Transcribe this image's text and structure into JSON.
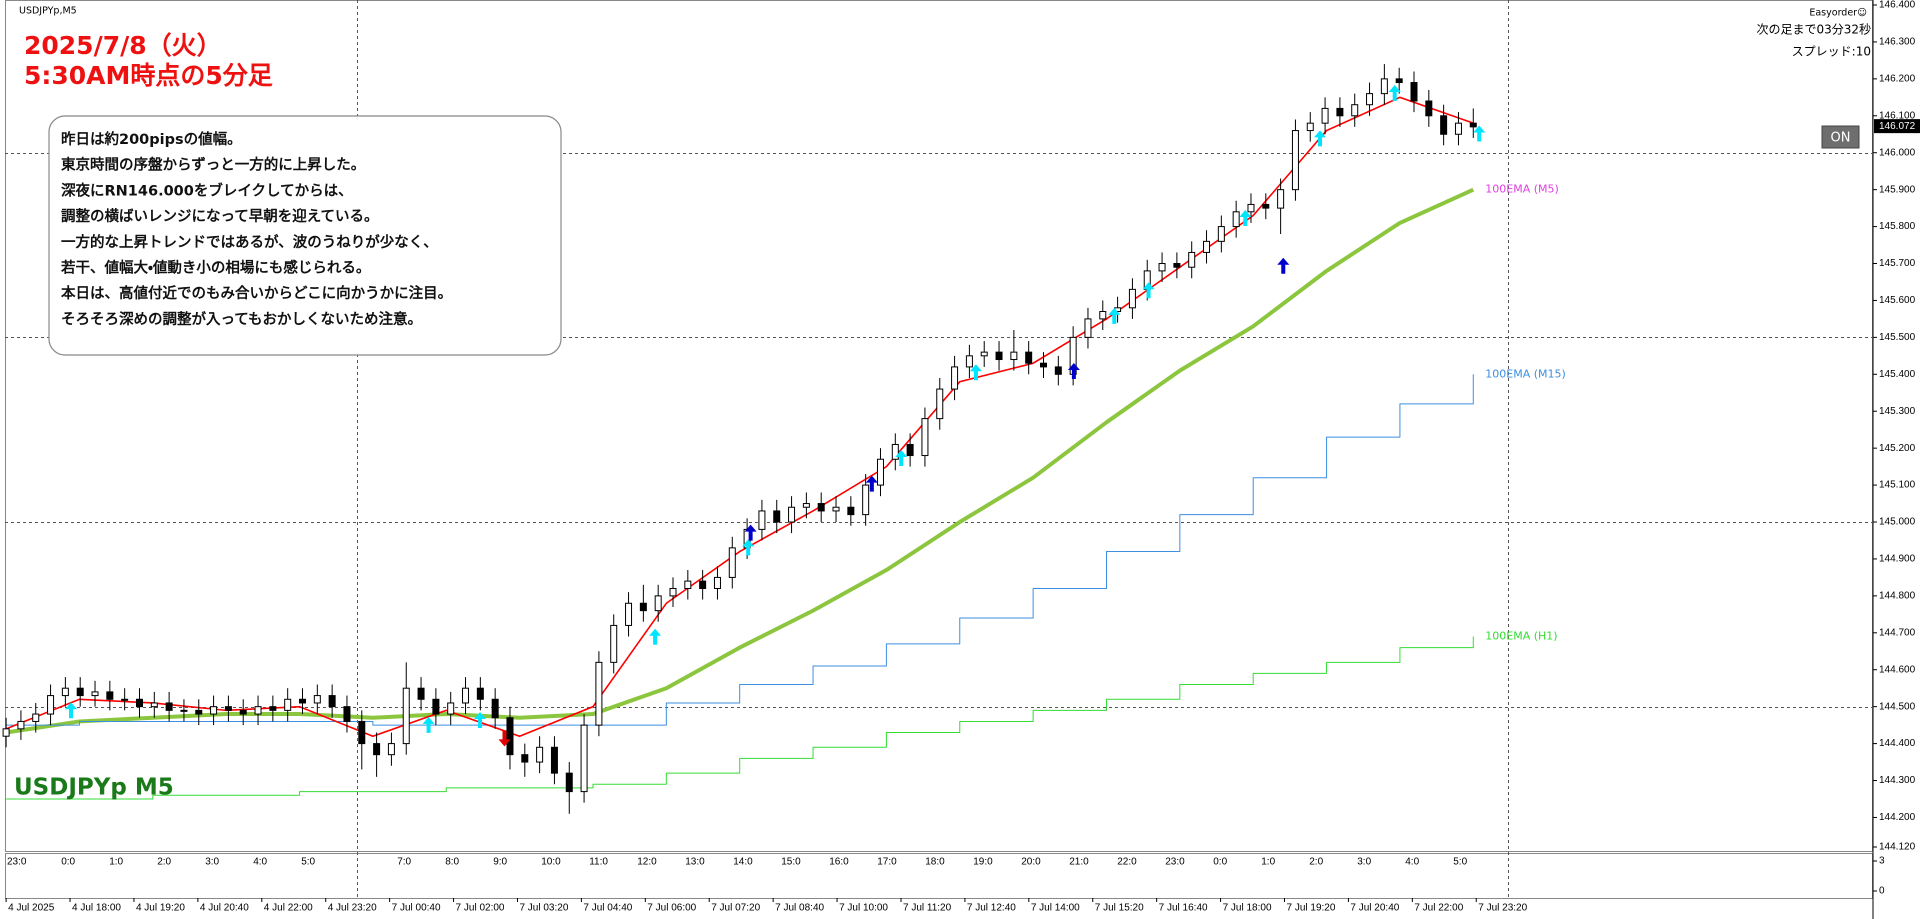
{
  "chart_data": {
    "type": "candlestick",
    "symbol_label": "USDJPYp,M5",
    "title": [
      "2025/7/8（火）",
      "5:30AM時点の5分足"
    ],
    "annotation": [
      "昨日は約200pipsの値幅。",
      "東京時間の序盤からずっと一方的に上昇した。",
      "深夜にRN146.000をブレイクしてからは、",
      "調整の横ばいレンジになって早朝を迎えている。",
      "一方的な上昇トレンドではあるが、波のうねりが少なく、",
      "若干、値幅大・値動き小の相場にも感じられる。",
      "本日は、高値付近でのもみ合いからどこに向かうかに注目。",
      "そろそろ深めの調整が入ってもおかしくないため注意。"
    ],
    "watermark": "USDJPYp M5",
    "panel": {
      "name": "Easyorder☺",
      "countdown": "次の足まで03分32秒",
      "spread": "スプレッド:10",
      "button": "ON"
    },
    "ylim": [
      144.12,
      146.4
    ],
    "yticks": [
      {
        "value": 144.12,
        "label": "144.120"
      },
      {
        "value": 144.2,
        "label": "144.200"
      },
      {
        "value": 144.3,
        "label": "144.300"
      },
      {
        "value": 144.4,
        "label": "144.400"
      },
      {
        "value": 144.5,
        "label": "144.500"
      },
      {
        "value": 144.6,
        "label": "144.600"
      },
      {
        "value": 144.7,
        "label": "144.700"
      },
      {
        "value": 144.8,
        "label": "144.800"
      },
      {
        "value": 144.9,
        "label": "144.900"
      },
      {
        "value": 145,
        "label": "145.000"
      },
      {
        "value": 145.1,
        "label": "145.100"
      },
      {
        "value": 145.2,
        "label": "145.200"
      },
      {
        "value": 145.3,
        "label": "145.300"
      },
      {
        "value": 145.4,
        "label": "145.400"
      },
      {
        "value": 145.5,
        "label": "145.500"
      },
      {
        "value": 145.6,
        "label": "145.600"
      },
      {
        "value": 145.7,
        "label": "145.700"
      },
      {
        "value": 145.8,
        "label": "145.800"
      },
      {
        "value": 145.9,
        "label": "145.900"
      },
      {
        "value": 146,
        "label": "146.000"
      },
      {
        "value": 146.1,
        "label": "146.100"
      },
      {
        "value": 146.2,
        "label": "146.200"
      },
      {
        "value": 146.3,
        "label": "146.300"
      },
      {
        "value": 146.4,
        "label": "146.400"
      }
    ],
    "grid_levels": [
      144.5,
      145,
      145.5,
      146
    ],
    "current_price": {
      "value": 146.072,
      "label": "146.072"
    },
    "sub_ylim": [
      0,
      3
    ],
    "sub_yticks": [
      3,
      0
    ],
    "hour_labels": [
      "23:0",
      "0:0",
      "1:0",
      "2:0",
      "3:0",
      "4:0",
      "5:0",
      null,
      "7:0",
      "8:0",
      "9:0",
      "10:0",
      "11:0",
      "12:0",
      "13:0",
      "14:0",
      "15:0",
      "16:0",
      "17:0",
      "18:0",
      "19:0",
      "20:0",
      "21:0",
      "22:0",
      "23:0",
      "0:0",
      "1:0",
      "2:0",
      "3:0",
      "4:0",
      "5:0"
    ],
    "x_labels": [
      "4 Jul 2025",
      "4 Jul 18:00",
      "4 Jul 19:20",
      "4 Jul 20:40",
      "4 Jul 22:00",
      "4 Jul 23:20",
      "7 Jul 00:40",
      "7 Jul 02:00",
      "7 Jul 03:20",
      "7 Jul 04:40",
      "7 Jul 06:00",
      "7 Jul 07:20",
      "7 Jul 08:40",
      "7 Jul 10:00",
      "7 Jul 11:20",
      "7 Jul 12:40",
      "7 Jul 14:00",
      "7 Jul 15:20",
      "7 Jul 16:40",
      "7 Jul 18:00",
      "7 Jul 19:20",
      "7 Jul 20:40",
      "7 Jul 22:00",
      "7 Jul 23:20"
    ],
    "open": [
      144.42,
      144.44,
      144.46,
      144.48,
      144.53,
      144.55,
      144.53,
      144.54,
      144.52,
      144.52,
      144.5,
      144.51,
      144.49,
      144.49,
      144.48,
      144.5,
      144.49,
      144.48,
      144.5,
      144.49,
      144.52,
      144.51,
      144.53,
      144.5,
      144.46,
      144.4,
      144.37,
      144.4,
      144.55,
      144.52,
      144.48,
      144.51,
      144.55,
      144.52,
      144.47,
      144.37,
      144.35,
      144.39,
      144.32,
      144.27,
      144.45,
      144.62,
      144.72,
      144.78,
      144.76,
      144.8,
      144.82,
      144.84,
      144.82,
      144.85,
      144.93,
      144.98,
      145.03,
      145.0,
      145.04,
      145.05,
      145.03,
      145.04,
      145.02,
      145.1,
      145.17,
      145.21,
      145.18,
      145.28,
      145.36,
      145.42,
      145.45,
      145.46,
      145.44,
      145.46,
      145.43,
      145.42,
      145.4,
      145.5,
      145.55,
      145.57,
      145.58,
      145.63,
      145.68,
      145.7,
      145.69,
      145.73,
      145.76,
      145.8,
      145.84,
      145.86,
      145.85,
      145.9,
      146.06,
      146.08,
      146.12,
      146.1,
      146.13,
      146.16,
      146.2,
      146.19,
      146.14,
      146.1,
      146.05,
      146.08
    ],
    "high": [
      144.47,
      144.49,
      144.51,
      144.56,
      144.58,
      144.58,
      144.57,
      144.57,
      144.55,
      144.55,
      144.54,
      144.54,
      144.52,
      144.52,
      144.53,
      144.53,
      144.52,
      144.53,
      144.53,
      144.55,
      144.55,
      144.56,
      144.56,
      144.53,
      144.49,
      144.43,
      144.43,
      144.62,
      144.58,
      144.55,
      144.54,
      144.58,
      144.58,
      144.55,
      144.5,
      144.4,
      144.42,
      144.42,
      144.35,
      144.48,
      144.65,
      144.75,
      144.81,
      144.83,
      144.83,
      144.85,
      144.87,
      144.87,
      144.88,
      144.96,
      145.01,
      145.06,
      145.06,
      145.07,
      145.08,
      145.08,
      145.07,
      145.07,
      145.13,
      145.2,
      145.24,
      145.24,
      145.31,
      145.39,
      145.45,
      145.48,
      145.49,
      145.49,
      145.52,
      145.49,
      145.46,
      145.45,
      145.53,
      145.58,
      145.6,
      145.61,
      145.66,
      145.71,
      145.73,
      145.73,
      145.76,
      145.79,
      145.83,
      145.87,
      145.89,
      145.89,
      145.93,
      146.09,
      146.11,
      146.15,
      146.15,
      146.16,
      146.19,
      146.24,
      146.23,
      146.22,
      146.17,
      146.13,
      146.11,
      146.12
    ],
    "low": [
      144.39,
      144.41,
      144.43,
      144.45,
      144.5,
      144.5,
      144.5,
      144.49,
      144.49,
      144.47,
      144.47,
      144.46,
      144.46,
      144.45,
      144.45,
      144.46,
      144.45,
      144.45,
      144.46,
      144.46,
      144.48,
      144.48,
      144.47,
      144.43,
      144.33,
      144.31,
      144.34,
      144.37,
      144.49,
      144.45,
      144.45,
      144.48,
      144.49,
      144.44,
      144.33,
      144.31,
      144.32,
      144.29,
      144.21,
      144.24,
      144.42,
      144.59,
      144.69,
      144.73,
      144.73,
      144.77,
      144.79,
      144.79,
      144.79,
      144.82,
      144.9,
      144.95,
      144.97,
      144.97,
      145.01,
      145.0,
      145.0,
      144.99,
      144.99,
      145.07,
      145.14,
      145.15,
      145.15,
      145.25,
      145.33,
      145.39,
      145.42,
      145.41,
      145.41,
      145.4,
      145.39,
      145.37,
      145.37,
      145.47,
      145.52,
      145.54,
      145.55,
      145.6,
      145.65,
      145.66,
      145.66,
      145.7,
      145.73,
      145.77,
      145.81,
      145.82,
      145.78,
      145.87,
      146.03,
      146.05,
      146.07,
      146.07,
      146.1,
      146.13,
      146.16,
      146.11,
      146.07,
      146.02,
      146.02,
      146.04
    ],
    "close": [
      144.44,
      144.46,
      144.48,
      144.53,
      144.55,
      144.53,
      144.54,
      144.52,
      144.52,
      144.5,
      144.51,
      144.49,
      144.49,
      144.48,
      144.5,
      144.49,
      144.48,
      144.5,
      144.49,
      144.52,
      144.51,
      144.53,
      144.5,
      144.46,
      144.4,
      144.37,
      144.4,
      144.55,
      144.52,
      144.48,
      144.51,
      144.55,
      144.52,
      144.47,
      144.37,
      144.35,
      144.39,
      144.32,
      144.27,
      144.45,
      144.62,
      144.72,
      144.78,
      144.76,
      144.8,
      144.82,
      144.84,
      144.82,
      144.85,
      144.93,
      144.98,
      145.03,
      145.0,
      145.04,
      145.05,
      145.03,
      145.04,
      145.02,
      145.1,
      145.17,
      145.21,
      145.18,
      145.28,
      145.36,
      145.42,
      145.45,
      145.46,
      145.44,
      145.46,
      145.43,
      145.42,
      145.4,
      145.5,
      145.55,
      145.57,
      145.58,
      145.63,
      145.68,
      145.7,
      145.69,
      145.73,
      145.76,
      145.8,
      145.84,
      145.86,
      145.85,
      145.9,
      146.06,
      146.08,
      146.12,
      146.1,
      146.13,
      146.16,
      146.2,
      146.19,
      146.14,
      146.1,
      146.05,
      146.08,
      146.07
    ],
    "up_color": "#ffffff",
    "down_color": "#000000",
    "fast_ma": {
      "color": "#ff0000",
      "values": [
        144.44,
        144.52,
        144.51,
        144.49,
        144.5,
        144.42,
        144.49,
        144.42,
        144.5,
        144.78,
        144.92,
        145.03,
        145.15,
        145.38,
        145.43,
        145.55,
        145.69,
        145.83,
        146.06,
        146.15,
        146.08
      ]
    },
    "series": [
      {
        "name": "100EMA (M5)",
        "color": "#8cc63f",
        "label_color": "#e040e0",
        "width": 4,
        "step": false,
        "values": [
          144.43,
          144.46,
          144.47,
          144.48,
          144.48,
          144.47,
          144.48,
          144.47,
          144.48,
          144.55,
          144.66,
          144.76,
          144.87,
          145.0,
          145.12,
          145.27,
          145.41,
          145.53,
          145.68,
          145.81,
          145.9
        ]
      },
      {
        "name": "100EMA (M15)",
        "color": "#3d8fe0",
        "label_color": "#3d8fe0",
        "width": 1,
        "step": true,
        "values": [
          144.45,
          144.46,
          144.46,
          144.46,
          144.46,
          144.45,
          144.45,
          144.45,
          144.45,
          144.51,
          144.56,
          144.61,
          144.67,
          144.74,
          144.82,
          144.92,
          145.02,
          145.12,
          145.23,
          145.32,
          145.4
        ]
      },
      {
        "name": "100EMA (H1)",
        "color": "#33dd33",
        "label_color": "#33dd33",
        "width": 1,
        "step": true,
        "values": [
          144.25,
          144.25,
          144.26,
          144.26,
          144.27,
          144.27,
          144.28,
          144.28,
          144.29,
          144.32,
          144.36,
          144.39,
          144.43,
          144.46,
          144.49,
          144.52,
          144.56,
          144.59,
          144.62,
          144.66,
          144.69
        ]
      }
    ]
  }
}
